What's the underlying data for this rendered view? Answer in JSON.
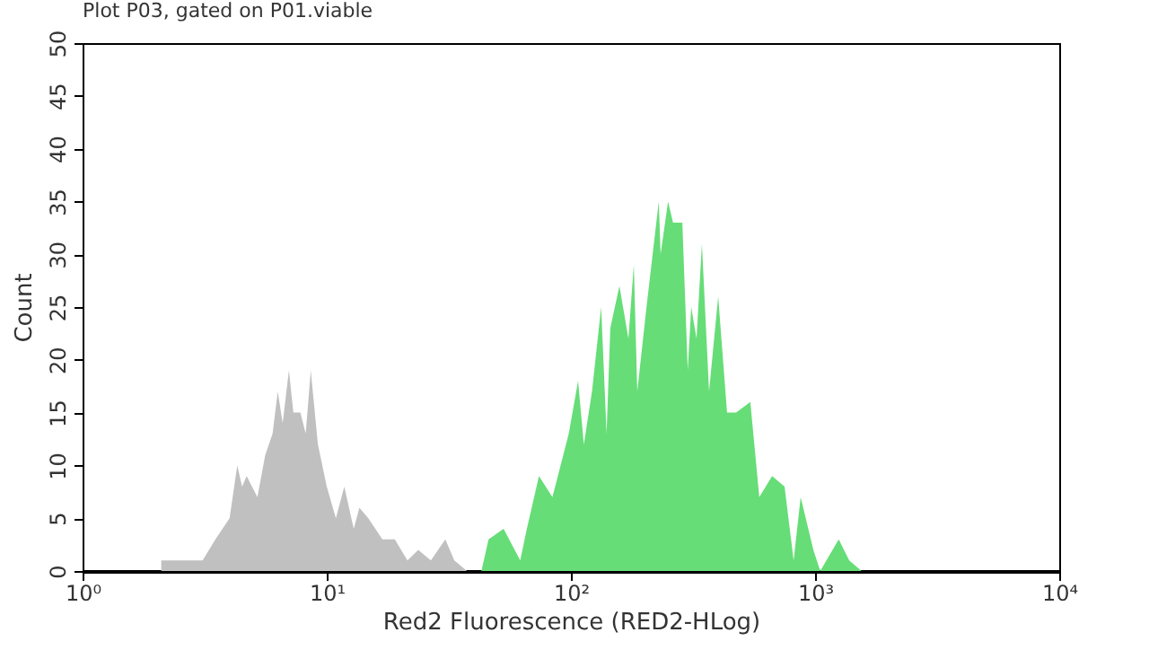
{
  "chart_data": {
    "type": "area",
    "title": "Plot P03, gated on P01.viable",
    "xlabel": "Red2 Fluorescence (RED2-HLog)",
    "ylabel": "Count",
    "log": "x",
    "xlim": [
      1,
      10000
    ],
    "xticks": [
      {
        "value": 1,
        "label": "10⁰"
      },
      {
        "value": 10,
        "label": "10¹"
      },
      {
        "value": 100,
        "label": "10²"
      },
      {
        "value": 1000,
        "label": "10³"
      },
      {
        "value": 10000,
        "label": "10⁴"
      }
    ],
    "ylim": [
      0,
      50
    ],
    "yticks": [
      0,
      5,
      10,
      15,
      20,
      25,
      30,
      35,
      40,
      45,
      50
    ],
    "grid": false,
    "series": [
      {
        "color": "#c0c0c0",
        "x": [
          2.1,
          2.5,
          3.1,
          3.5,
          4.0,
          4.3,
          4.5,
          4.7,
          5.2,
          5.6,
          6.0,
          6.3,
          6.6,
          7.0,
          7.3,
          7.8,
          8.2,
          8.6,
          9.2,
          10,
          10.9,
          11.8,
          12.9,
          13.6,
          14.8,
          16.9,
          19,
          21.4,
          23.7,
          26.7,
          30.6,
          33.3,
          37.5,
          40.8
        ],
        "values": [
          1,
          1,
          1,
          3,
          5,
          10,
          8,
          9,
          7,
          11,
          13,
          17,
          14,
          19,
          15,
          15,
          13,
          19,
          12,
          8,
          5,
          8,
          4,
          6,
          5,
          3,
          3,
          1,
          2,
          1,
          3,
          1,
          0,
          0
        ]
      },
      {
        "color": "#66dd77",
        "x": [
          43,
          46,
          53,
          62,
          66,
          74,
          84,
          98,
          107,
          113,
          122,
          133,
          140,
          145,
          158,
          172,
          181,
          187,
          204,
          229,
          233,
          250,
          262,
          286,
          301,
          311,
          327,
          344,
          368,
          401,
          436,
          475,
          543,
          591,
          667,
          750,
          817,
          873,
          984,
          1050,
          1250,
          1380,
          1550
        ],
        "values": [
          0,
          3,
          4,
          1,
          4,
          9,
          7,
          13,
          18,
          12,
          17,
          25,
          13,
          23,
          27,
          22,
          29,
          17,
          25,
          35,
          30,
          35,
          33,
          33,
          19,
          25,
          22,
          31,
          17,
          26,
          15,
          15,
          16,
          7,
          9,
          8,
          1,
          7,
          2,
          0,
          3,
          1,
          0
        ]
      }
    ]
  }
}
